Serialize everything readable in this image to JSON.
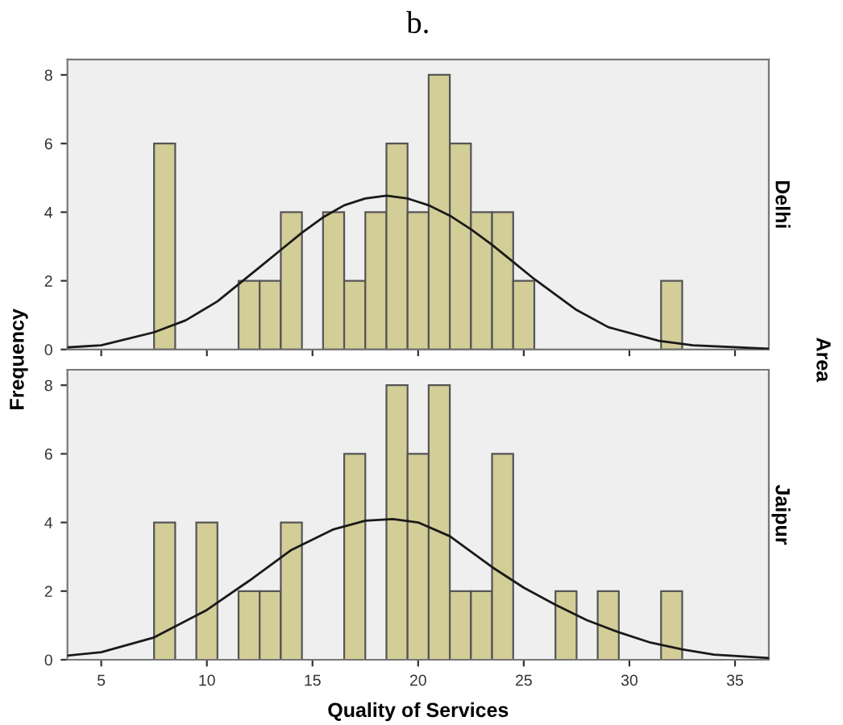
{
  "chart_data": [
    {
      "type": "histogram",
      "title": "b.",
      "subtitle": "Delhi",
      "ylabel": "Frequency",
      "annotations": [
        "Area"
      ],
      "color": "#d3ce97",
      "bins": [
        7.5,
        8.5,
        9.5,
        10.5,
        11.5,
        12.5,
        13.5,
        14.5,
        15.5,
        16.5,
        17.5,
        18.5,
        19.5,
        20.5,
        21.5,
        22.5,
        23.5,
        24.5,
        25.5,
        26.5,
        27.5,
        28.5,
        29.5,
        30.5,
        31.5,
        32.5
      ],
      "values": [
        6,
        0,
        0,
        0,
        2,
        2,
        4,
        0,
        4,
        2,
        4,
        6,
        4,
        8,
        6,
        4,
        4,
        2,
        0,
        0,
        0,
        0,
        0,
        0,
        2
      ],
      "series": [
        {
          "type": "line",
          "color": "#1a1a1a",
          "x": [
            3.4,
            5,
            7.5,
            9,
            10.5,
            11.5,
            12.5,
            13.5,
            14.5,
            15.5,
            16.5,
            17.5,
            18.5,
            19.5,
            20.5,
            21.5,
            22.5,
            23.5,
            24.5,
            25.5,
            26.5,
            27.5,
            29,
            31.4,
            33,
            36.6
          ],
          "values": [
            0.06,
            0.12,
            0.5,
            0.85,
            1.4,
            1.9,
            2.4,
            2.9,
            3.4,
            3.85,
            4.2,
            4.4,
            4.48,
            4.4,
            4.2,
            3.9,
            3.5,
            3.05,
            2.55,
            2.05,
            1.6,
            1.15,
            0.65,
            0.25,
            0.12,
            0.02
          ]
        }
      ],
      "xlim": [
        3.4,
        36.6
      ],
      "xticks": [
        5,
        10,
        15,
        20,
        25,
        30,
        35
      ],
      "ylim": [
        0,
        8.45
      ],
      "yticks": [
        0,
        2,
        4,
        6,
        8
      ],
      "tick_labels": "y",
      "grid": false,
      "legend": false
    },
    {
      "type": "histogram",
      "subtitle": "Jaipur",
      "xlabel": "Quality of Services",
      "color": "#d3ce97",
      "bins": [
        7.5,
        8.5,
        9.5,
        10.5,
        11.5,
        12.5,
        13.5,
        14.5,
        15.5,
        16.5,
        17.5,
        18.5,
        19.5,
        20.5,
        21.5,
        22.5,
        23.5,
        24.5,
        25.5,
        26.5,
        27.5,
        28.5,
        29.5,
        30.5,
        31.5,
        32.5
      ],
      "values": [
        4,
        0,
        4,
        0,
        2,
        2,
        4,
        0,
        0,
        6,
        0,
        8,
        6,
        8,
        2,
        2,
        6,
        0,
        0,
        2,
        0,
        2,
        0,
        0,
        2
      ],
      "series": [
        {
          "type": "line",
          "color": "#1a1a1a",
          "x": [
            3.4,
            5,
            7.5,
            10,
            12,
            14,
            16,
            17.5,
            18.8,
            20,
            21.5,
            23.5,
            25,
            26.5,
            28,
            29.5,
            31,
            32.5,
            34,
            36.6
          ],
          "values": [
            0.12,
            0.22,
            0.65,
            1.45,
            2.3,
            3.2,
            3.8,
            4.05,
            4.1,
            4.0,
            3.6,
            2.7,
            2.1,
            1.6,
            1.15,
            0.8,
            0.5,
            0.3,
            0.15,
            0.05
          ]
        }
      ],
      "xlim": [
        3.4,
        36.6
      ],
      "xticks": [
        5,
        10,
        15,
        20,
        25,
        30,
        35
      ],
      "ylim": [
        0,
        8.45
      ],
      "yticks": [
        0,
        2,
        4,
        6,
        8
      ],
      "grid": false,
      "legend": false
    }
  ]
}
